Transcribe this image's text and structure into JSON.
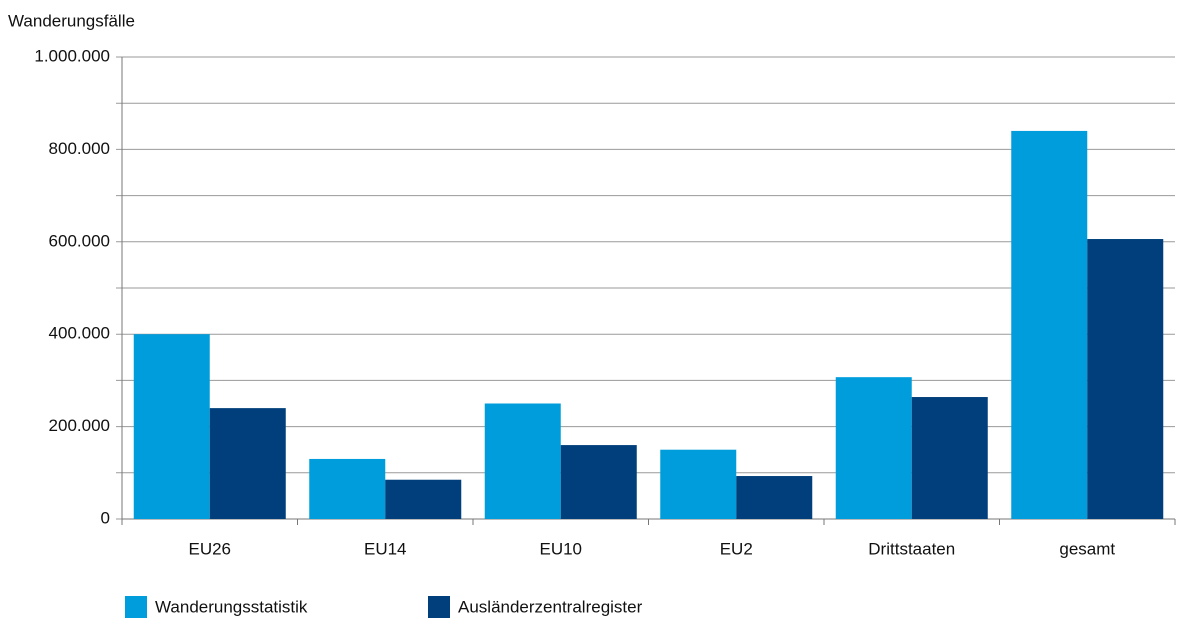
{
  "chart_data": {
    "type": "bar",
    "ylabel": "Wanderungsfälle",
    "categories": [
      "EU26",
      "EU14",
      "EU10",
      "EU2",
      "Drittstaaten",
      "gesamt"
    ],
    "series": [
      {
        "name": "Wanderungsstatistik",
        "color": "#009ddc",
        "values": [
          400000,
          130000,
          250000,
          150000,
          307000,
          840000
        ]
      },
      {
        "name": "Ausländerzentralregister",
        "color": "#003f7b",
        "values": [
          240000,
          85000,
          160000,
          93000,
          264000,
          606000
        ]
      }
    ],
    "ylim": [
      0,
      1000000
    ],
    "yticks": [
      0,
      {
        "value": 200000,
        "label": "200.000"
      },
      {
        "value": 400000,
        "label": "400.000"
      },
      {
        "value": 600000,
        "label": "600.000"
      },
      {
        "value": 800000,
        "label": "800.000"
      },
      {
        "value": 1000000,
        "label": "1.000.000"
      }
    ],
    "minor_yticks": [
      100000,
      300000,
      500000,
      700000,
      900000
    ],
    "grid": true,
    "legend": "bottom"
  }
}
